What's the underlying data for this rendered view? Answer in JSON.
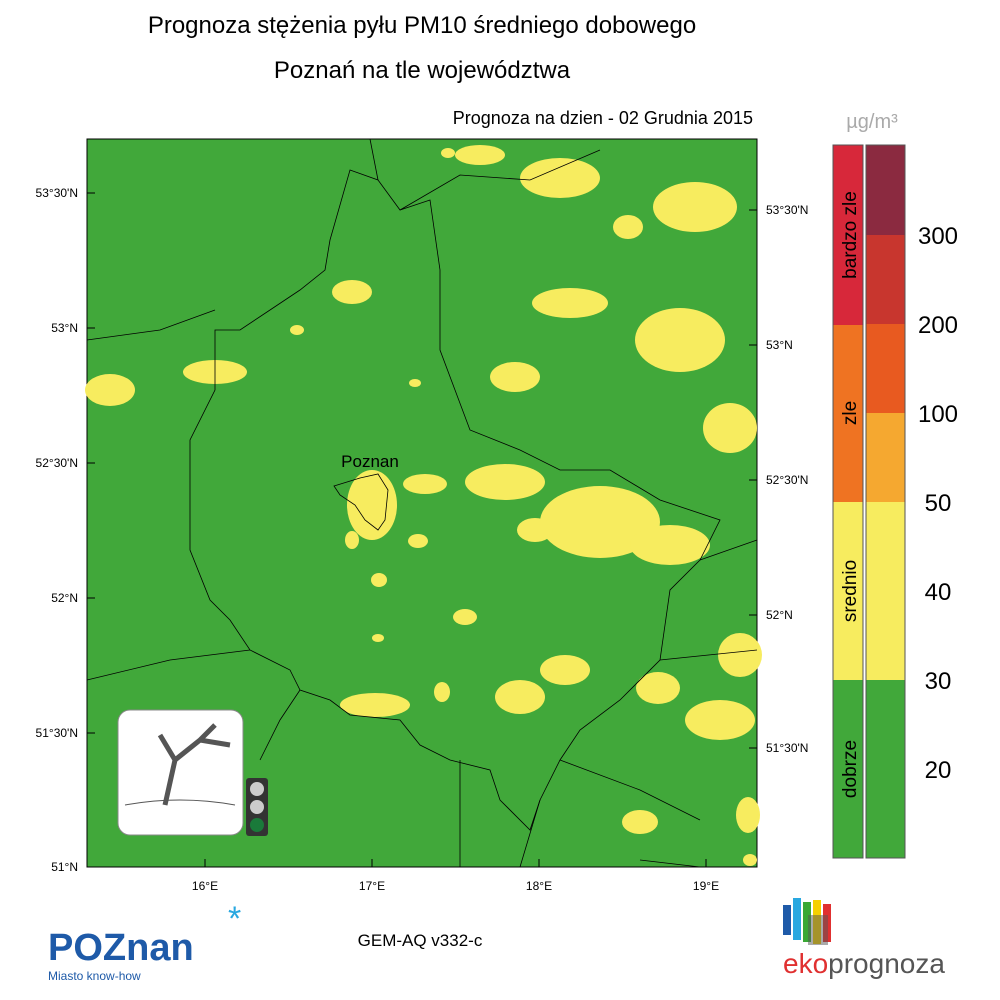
{
  "header": {
    "title": "Prognoza stężenia pyłu PM10 średniego dobowego",
    "subtitle": "Poznań na tle województwa",
    "date": "Prognoza na dzien -  02 Grudnia 2015"
  },
  "map": {
    "left_lat_ticks": [
      "53°30'N",
      "53°N",
      "52°30'N",
      "52°N",
      "51°30'N",
      "51°N"
    ],
    "right_lat_ticks": [
      "53°30'N",
      "53°N",
      "52°30'N",
      "52°N",
      "51°30'N"
    ],
    "lon_ticks": [
      "16°E",
      "17°E",
      "18°E",
      "19°E"
    ],
    "city_label": "Poznan"
  },
  "legend": {
    "unit": "µg/m³",
    "categories": [
      "bardzo zle",
      "zle",
      "srednio",
      "dobrze"
    ],
    "levels": [
      "300",
      "200",
      "100",
      "50",
      "40",
      "30",
      "20"
    ]
  },
  "footer": {
    "model": "GEM-AQ v332-c",
    "logo_left": "POZnan",
    "logo_left_tagline": "Miasto know-how",
    "logo_right_a": "eko",
    "logo_right_b": "prognoza"
  }
}
